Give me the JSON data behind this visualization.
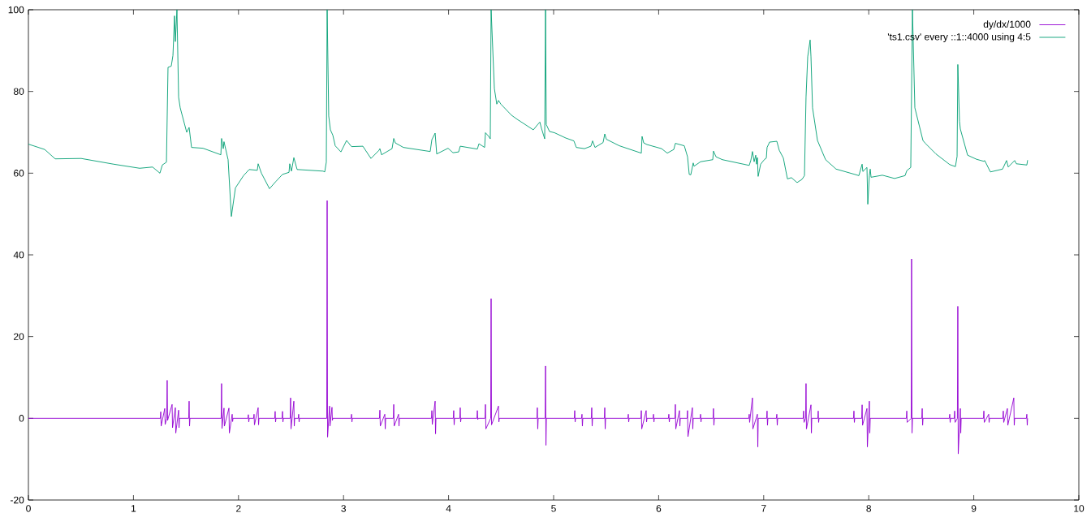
{
  "chart_data": {
    "type": "line",
    "xlim": [
      0,
      10
    ],
    "ylim": [
      -20,
      100
    ],
    "xticks": [
      0,
      1,
      2,
      3,
      4,
      5,
      6,
      7,
      8,
      9,
      10
    ],
    "yticks": [
      -20,
      0,
      20,
      40,
      60,
      80,
      100
    ],
    "legend": "top right",
    "series": [
      {
        "name": "dy/dx/1000",
        "color": "#9400d3",
        "x": [
          0,
          1.256,
          1.26,
          1.264,
          1.298,
          1.302,
          1.317,
          1.321,
          1.325,
          1.368,
          1.372,
          1.399,
          1.403,
          1.43,
          1.434,
          1.438,
          1.526,
          1.53,
          1.534,
          1.538,
          1.835,
          1.839,
          1.843,
          1.862,
          1.866,
          1.909,
          1.913,
          1.94,
          1.944,
          1.948,
          2.09,
          2.094,
          2.098,
          2.102,
          2.144,
          2.148,
          2.152,
          2.187,
          2.191,
          2.195,
          2.345,
          2.349,
          2.353,
          2.357,
          2.415,
          2.419,
          2.423,
          2.427,
          2.492,
          2.496,
          2.5,
          2.527,
          2.531,
          2.535,
          2.569,
          2.573,
          2.577,
          2.581,
          2.84,
          2.844,
          2.848,
          2.867,
          2.871,
          2.89,
          2.894,
          2.898,
          3.072,
          3.076,
          3.08,
          3.084,
          3.342,
          3.346,
          3.35,
          3.393,
          3.397,
          3.401,
          3.474,
          3.478,
          3.482,
          3.524,
          3.528,
          3.532,
          3.837,
          3.841,
          3.845,
          3.872,
          3.876,
          3.88,
          4.045,
          4.049,
          4.053,
          4.057,
          4.107,
          4.111,
          4.115,
          4.119,
          4.27,
          4.274,
          4.278,
          4.282,
          4.347,
          4.351,
          4.355,
          4.401,
          4.405,
          4.409,
          4.475,
          4.479,
          4.483,
          4.841,
          4.845,
          4.849,
          4.853,
          4.919,
          4.923,
          4.927,
          4.931,
          5.197,
          5.201,
          5.205,
          5.209,
          5.266,
          5.27,
          5.274,
          5.278,
          5.359,
          5.363,
          5.367,
          5.371,
          5.483,
          5.487,
          5.491,
          5.495,
          5.707,
          5.711,
          5.715,
          5.719,
          5.831,
          5.835,
          5.839,
          5.881,
          5.885,
          5.889,
          5.947,
          5.951,
          5.955,
          5.959,
          6.093,
          6.097,
          6.101,
          6.105,
          6.155,
          6.159,
          6.163,
          6.198,
          6.202,
          6.206,
          6.271,
          6.275,
          6.279,
          6.321,
          6.325,
          6.329,
          6.395,
          6.399,
          6.403,
          6.407,
          6.518,
          6.522,
          6.526,
          6.53,
          6.858,
          6.862,
          6.866,
          6.893,
          6.897,
          6.94,
          6.944,
          6.948,
          7.028,
          7.032,
          7.036,
          7.04,
          7.121,
          7.125,
          7.129,
          7.133,
          7.376,
          7.38,
          7.384,
          7.399,
          7.403,
          7.407,
          7.45,
          7.454,
          7.458,
          7.515,
          7.519,
          7.523,
          7.527,
          7.855,
          7.859,
          7.863,
          7.867,
          7.933,
          7.937,
          7.941,
          7.983,
          7.987,
          8.006,
          8.01,
          8.014,
          8.358,
          8.362,
          8.366,
          8.404,
          8.408,
          8.412,
          8.416,
          8.505,
          8.509,
          8.513,
          8.517,
          8.767,
          8.771,
          8.775,
          8.779,
          8.814,
          8.818,
          8.822,
          8.844,
          8.848,
          8.852,
          8.872,
          8.876,
          8.88,
          9.092,
          9.096,
          9.1,
          9.142,
          9.146,
          9.15,
          9.277,
          9.281,
          9.285,
          9.32,
          9.324,
          9.381,
          9.385,
          9.389,
          9.501,
          9.505,
          9.509,
          9.513
        ],
        "values": [
          0,
          0,
          1.6,
          -1.9,
          2.4,
          -1.5,
          0,
          9.3,
          -0.5,
          3.4,
          -2.3,
          2.6,
          -3.6,
          2.0,
          -2.3,
          0,
          0,
          4.2,
          -1.9,
          0,
          0,
          8.5,
          -2.5,
          2.5,
          -1.9,
          2.5,
          -3.6,
          1.0,
          -0.8,
          0,
          0,
          0.9,
          -0.9,
          0,
          0,
          1.0,
          -1.6,
          2.6,
          -1.6,
          0,
          0,
          1.7,
          -0.9,
          0,
          0,
          1.7,
          -0.9,
          0,
          0,
          5.0,
          -2.6,
          4.2,
          -1.9,
          0,
          0,
          1.0,
          -0.9,
          0,
          0,
          53.3,
          -4.6,
          3.0,
          -1.9,
          2.7,
          -0.5,
          0,
          0,
          1.0,
          -0.9,
          0,
          0,
          2.0,
          -1.9,
          1.0,
          -2.6,
          0,
          0,
          3.4,
          -1.9,
          1.0,
          -1.9,
          0,
          0,
          1.9,
          -1.5,
          4.2,
          -3.8,
          0,
          0,
          1.9,
          -1.6,
          0,
          0,
          2.6,
          -0.9,
          0,
          0,
          1.9,
          -0.3,
          0,
          0,
          3.4,
          -2.6,
          0,
          29.3,
          -1.6,
          3.0,
          -0.9,
          0,
          0,
          2.6,
          -2.6,
          0,
          0,
          12.8,
          -6.6,
          0,
          0,
          1.9,
          -0.9,
          0,
          0,
          1.0,
          -1.9,
          0,
          0,
          2.6,
          -1.9,
          0,
          0,
          2.6,
          -2.6,
          0,
          0,
          1.0,
          -0.9,
          0,
          0,
          1.9,
          -2.6,
          1.9,
          -0.9,
          0,
          0,
          1.0,
          -0.9,
          0,
          0,
          1.0,
          -0.9,
          0,
          0,
          3.4,
          -2.6,
          1.9,
          -1.9,
          0,
          0,
          1.9,
          -4.5,
          2.6,
          -2.6,
          0,
          0,
          1.0,
          -0.9,
          0,
          0,
          2.4,
          -1.7,
          0,
          0,
          1.0,
          -1.0,
          5.0,
          -2.6,
          1.0,
          -7.0,
          0,
          0,
          1.8,
          -1.7,
          0,
          0,
          1.0,
          -1.7,
          0,
          0,
          1.8,
          -1.0,
          0,
          8.5,
          -2.6,
          3.3,
          -3.6,
          0,
          0,
          1.8,
          -1.0,
          0,
          0,
          1.8,
          -1.0,
          0,
          0,
          3.3,
          -1.7,
          2.4,
          -7.0,
          4.2,
          -3.6,
          0,
          0,
          1.8,
          -1.0,
          0,
          39.0,
          -3.6,
          0,
          0,
          2.4,
          -1.7,
          0,
          0,
          1.0,
          -1.0,
          0,
          0,
          1.8,
          -1.0,
          0,
          27.4,
          -8.7,
          2.4,
          -3.6,
          0,
          0,
          1.8,
          -1.0,
          1.0,
          -1.0,
          0,
          0,
          1.8,
          -1.0,
          2.4,
          -1.7,
          5.0,
          -1.7,
          0,
          0,
          1.0,
          -1.7,
          0
        ]
      },
      {
        "name": "'ts1.csv' every ::1::4000 using 4:5",
        "color": "#009e73",
        "x": [
          0,
          0.155,
          0.255,
          0.502,
          0.811,
          1.059,
          1.182,
          1.252,
          1.275,
          1.314,
          1.329,
          1.36,
          1.376,
          1.391,
          1.399,
          1.414,
          1.43,
          1.445,
          1.507,
          1.53,
          1.553,
          1.662,
          1.832,
          1.839,
          1.855,
          1.862,
          1.901,
          1.932,
          1.971,
          2.048,
          2.102,
          2.179,
          2.187,
          2.218,
          2.295,
          2.357,
          2.419,
          2.481,
          2.488,
          2.504,
          2.527,
          2.558,
          2.805,
          2.821,
          2.836,
          2.844,
          2.859,
          2.875,
          2.898,
          2.921,
          2.975,
          3.029,
          3.076,
          3.184,
          3.261,
          3.338,
          3.346,
          3.362,
          3.462,
          3.478,
          3.493,
          3.57,
          3.825,
          3.841,
          3.872,
          3.887,
          3.995,
          4.042,
          4.096,
          4.111,
          4.274,
          4.289,
          4.343,
          4.351,
          4.382,
          4.397,
          4.405,
          4.436,
          4.459,
          4.475,
          4.498,
          4.598,
          4.652,
          4.807,
          4.845,
          4.869,
          4.884,
          4.915,
          4.923,
          4.93,
          4.961,
          5.008,
          5.116,
          5.193,
          5.216,
          5.294,
          5.355,
          5.371,
          5.394,
          5.471,
          5.487,
          5.502,
          5.626,
          5.835,
          5.842,
          5.858,
          5.889,
          6.028,
          6.082,
          6.144,
          6.159,
          6.244,
          6.275,
          6.291,
          6.306,
          6.329,
          6.337,
          6.399,
          6.515,
          6.522,
          6.546,
          6.607,
          6.862,
          6.878,
          6.893,
          6.909,
          6.924,
          6.932,
          6.94,
          6.947,
          6.971,
          7.009,
          7.025,
          7.032,
          7.056,
          7.125,
          7.148,
          7.187,
          7.226,
          7.264,
          7.318,
          7.365,
          7.388,
          7.403,
          7.419,
          7.442,
          7.45,
          7.465,
          7.512,
          7.589,
          7.689,
          7.867,
          7.906,
          7.937,
          7.944,
          7.983,
          7.991,
          8.006,
          8.014,
          8.022,
          8.13,
          8.246,
          8.346,
          8.362,
          8.4,
          8.416,
          8.439,
          8.516,
          8.539,
          8.64,
          8.771,
          8.825,
          8.841,
          8.848,
          8.864,
          8.872,
          8.941,
          9.026,
          9.096,
          9.104,
          9.158,
          9.274,
          9.312,
          9.328,
          9.389,
          9.405,
          9.505,
          9.513
        ],
        "values": [
          67.1,
          65.8,
          63.5,
          63.6,
          62.2,
          61.2,
          61.5,
          60.0,
          62.0,
          62.7,
          85.9,
          86.2,
          88.8,
          98.5,
          92.2,
          100,
          78.6,
          76.0,
          70.0,
          71.2,
          66.3,
          66.1,
          64.5,
          68.5,
          66.0,
          67.7,
          63.3,
          49.4,
          56.4,
          59.4,
          60.9,
          60.7,
          62.3,
          60.0,
          56.2,
          58.0,
          59.7,
          60.2,
          62.3,
          60.5,
          63.8,
          60.9,
          60.5,
          60.3,
          62.7,
          100,
          74.0,
          70.6,
          69.3,
          66.7,
          65.2,
          68.0,
          66.5,
          66.6,
          63.6,
          65.6,
          66.0,
          64.5,
          66.0,
          68.5,
          67.4,
          66.3,
          65.3,
          68.2,
          69.8,
          64.7,
          66.1,
          65.0,
          65.2,
          66.6,
          65.9,
          67.2,
          66.3,
          69.9,
          69.0,
          68.4,
          100,
          80.7,
          76.9,
          77.8,
          76.9,
          74.2,
          73.2,
          70.6,
          71.8,
          72.5,
          71.0,
          68.4,
          100,
          71.9,
          70.2,
          69.9,
          68.6,
          67.9,
          66.3,
          66.0,
          66.6,
          67.9,
          66.3,
          67.5,
          69.6,
          68.3,
          66.7,
          64.9,
          69.0,
          67.4,
          67.0,
          66.0,
          64.9,
          65.8,
          67.3,
          66.7,
          64.0,
          59.7,
          59.6,
          62.5,
          61.7,
          62.8,
          63.3,
          65.4,
          64.0,
          63.3,
          61.9,
          63.2,
          65.3,
          62.8,
          64.4,
          62.2,
          63.8,
          59.2,
          62.2,
          63.4,
          63.7,
          66.3,
          67.6,
          67.8,
          65.6,
          63.7,
          58.6,
          58.9,
          57.7,
          58.5,
          59.4,
          78.6,
          88.5,
          92.6,
          88.5,
          76.0,
          68.0,
          63.3,
          61.0,
          59.7,
          59.4,
          62.2,
          60.4,
          61.4,
          52.4,
          59.4,
          61.0,
          59.0,
          59.5,
          58.7,
          59.4,
          60.6,
          61.4,
          100,
          76.0,
          68.0,
          67.3,
          64.7,
          62.1,
          61.6,
          64.1,
          86.6,
          72.7,
          70.8,
          64.4,
          63.4,
          62.9,
          63.1,
          60.3,
          61.0,
          63.1,
          61.5,
          63.1,
          62.3,
          62.0,
          63.2
        ]
      }
    ]
  }
}
